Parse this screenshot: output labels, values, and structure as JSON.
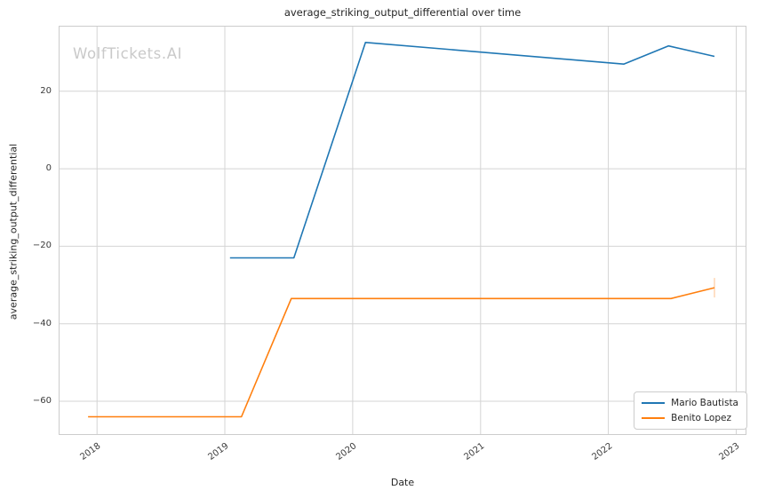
{
  "watermark": {
    "text": "WolfTickets.AI",
    "color": "#c9c9c9"
  },
  "colors": {
    "background": "#ffffff",
    "grid": "#d4d4d4",
    "frame": "#cccccc",
    "title_text": "#262626",
    "tick_text": "#3a3a3a",
    "series_blue": "#1f77b4",
    "series_orange": "#ff7f0e"
  },
  "chart_data": {
    "type": "line",
    "title": "average_striking_output_differential over time",
    "xlabel": "Date",
    "ylabel": "average_striking_output_differential",
    "grid": true,
    "legend_position": "lower right",
    "xlim": [
      2017.7,
      2023.08
    ],
    "ylim": [
      -68.7,
      36.9
    ],
    "xticks": [
      {
        "v": 2018,
        "label": "2018"
      },
      {
        "v": 2019,
        "label": "2019"
      },
      {
        "v": 2020,
        "label": "2020"
      },
      {
        "v": 2021,
        "label": "2021"
      },
      {
        "v": 2022,
        "label": "2022"
      },
      {
        "v": 2023,
        "label": "2023"
      }
    ],
    "yticks": [
      {
        "v": -60,
        "label": "−60"
      },
      {
        "v": -40,
        "label": "−40"
      },
      {
        "v": -20,
        "label": "−20"
      },
      {
        "v": 0,
        "label": "0"
      },
      {
        "v": 20,
        "label": "20"
      }
    ],
    "series": [
      {
        "name": "Mario Bautista",
        "color": "#1f77b4",
        "points": [
          [
            2019.04,
            -23.0
          ],
          [
            2019.54,
            -23.0
          ],
          [
            2020.1,
            32.6
          ],
          [
            2022.12,
            27.0
          ],
          [
            2022.47,
            31.7
          ],
          [
            2022.83,
            29.0
          ]
        ]
      },
      {
        "name": "Benito Lopez",
        "color": "#ff7f0e",
        "points": [
          [
            2017.93,
            -64.0
          ],
          [
            2019.13,
            -64.0
          ],
          [
            2019.52,
            -33.5
          ],
          [
            2022.49,
            -33.5
          ],
          [
            2022.83,
            -30.7
          ]
        ]
      }
    ],
    "end_marker": {
      "x": 2022.83,
      "y": -30.7,
      "color": "#ff7f0e",
      "opacity": 0.4
    }
  },
  "legend": {
    "entries": [
      {
        "label": "Mario Bautista"
      },
      {
        "label": "Benito Lopez"
      }
    ]
  }
}
